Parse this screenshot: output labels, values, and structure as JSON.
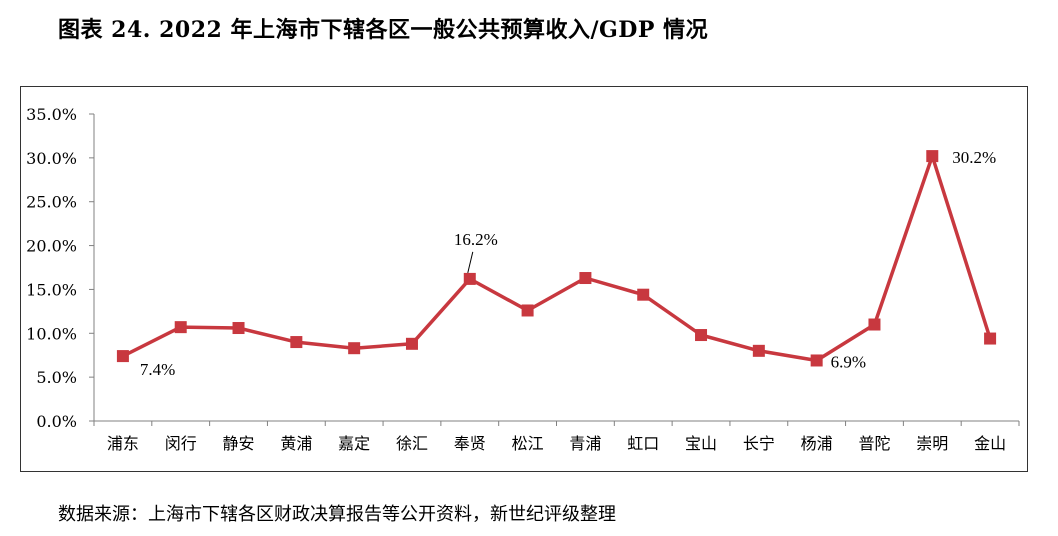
{
  "figure": {
    "title": "图表 24.  2022 年上海市下辖各区一般公共预算收入/GDP 情况",
    "source": "数据来源：上海市下辖各区财政决算报告等公开资料，新世纪评级整理"
  },
  "chart_data": {
    "type": "line",
    "title": "2022 年上海市下辖各区一般公共预算收入/GDP 情况",
    "xlabel": "",
    "ylabel": "",
    "categories": [
      "浦东",
      "闵行",
      "静安",
      "黄浦",
      "嘉定",
      "徐汇",
      "奉贤",
      "松江",
      "青浦",
      "虹口",
      "宝山",
      "长宁",
      "杨浦",
      "普陀",
      "崇明",
      "金山"
    ],
    "series": [
      {
        "name": "一般公共预算收入/GDP",
        "values": [
          7.4,
          10.7,
          10.6,
          9.0,
          8.3,
          8.8,
          16.2,
          12.6,
          16.3,
          14.4,
          9.8,
          8.0,
          6.9,
          11.0,
          30.2,
          9.4
        ],
        "color": "#c8383f"
      }
    ],
    "ylim": [
      0,
      35
    ],
    "yticks": [
      "0.0%",
      "5.0%",
      "10.0%",
      "15.0%",
      "20.0%",
      "25.0%",
      "30.0%",
      "35.0%"
    ],
    "annotations": [
      {
        "category": "浦东",
        "text": "7.4%"
      },
      {
        "category": "奉贤",
        "text": "16.2%"
      },
      {
        "category": "杨浦",
        "text": "6.9%"
      },
      {
        "category": "崇明",
        "text": "30.2%"
      }
    ],
    "legend": "none",
    "grid": false
  }
}
